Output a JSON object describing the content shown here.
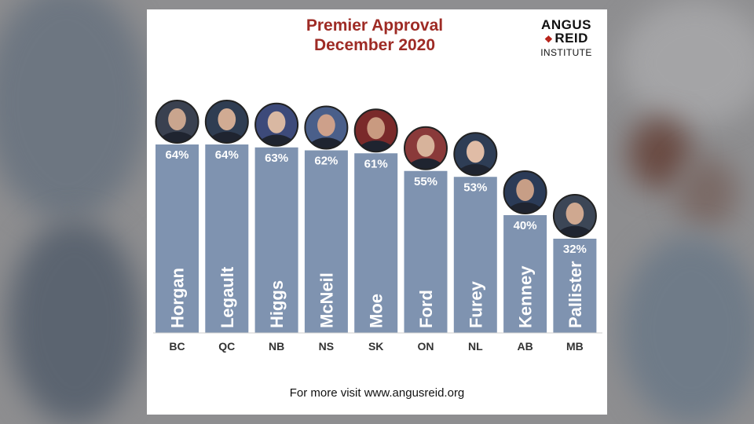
{
  "chart_data": {
    "type": "bar",
    "title": "Premier Approval",
    "subtitle": "December 2020",
    "categories": [
      "BC",
      "QC",
      "NB",
      "NS",
      "SK",
      "ON",
      "NL",
      "AB",
      "MB"
    ],
    "names": [
      "Horgan",
      "Legault",
      "Higgs",
      "McNeil",
      "Moe",
      "Ford",
      "Furey",
      "Kenney",
      "Pallister"
    ],
    "values": [
      64,
      64,
      63,
      62,
      61,
      55,
      53,
      40,
      32
    ],
    "value_labels": [
      "64%",
      "64%",
      "63%",
      "62%",
      "61%",
      "55%",
      "53%",
      "40%",
      "32%"
    ],
    "ylim": [
      0,
      100
    ],
    "grid": false,
    "legend": "none",
    "bar_color": "#7f93b0"
  },
  "logo": {
    "line1": "ANGUS",
    "line2": "REID",
    "line3": "INSTITUTE",
    "accent_color": "#b8231a",
    "icon": "maple-leaf-icon"
  },
  "footer": "For more visit www.angusreid.org",
  "colors": {
    "title": "#9e2b25",
    "background": "#8e8e90"
  }
}
